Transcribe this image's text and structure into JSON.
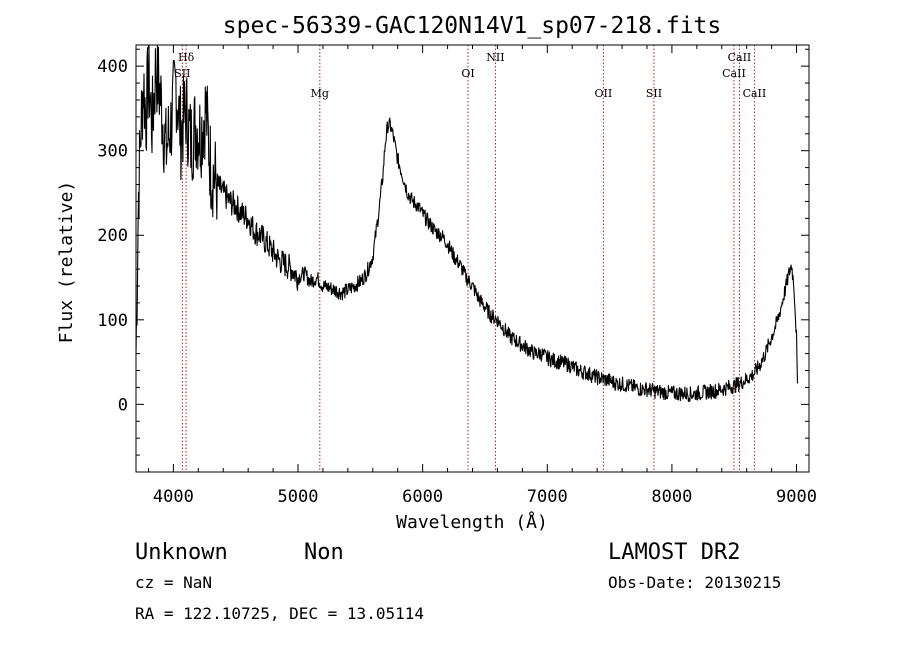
{
  "chart_data": {
    "type": "line",
    "title": "spec-56339-GAC120N14V1_sp07-218.fits",
    "xlabel": "Wavelength (Å)",
    "ylabel": "Flux (relative)",
    "xlim": [
      3700,
      9100
    ],
    "ylim": [
      -80,
      425
    ],
    "x_ticks": [
      4000,
      5000,
      6000,
      7000,
      8000,
      9000
    ],
    "y_ticks": [
      0,
      100,
      200,
      300,
      400
    ],
    "grid": false,
    "line_color": "#000000",
    "marker_color": "#b22222",
    "series": [
      {
        "x": [
          3700,
          3720,
          3740,
          3760,
          3780,
          3800,
          3830,
          3860,
          3900,
          3940,
          3980,
          4020,
          4060,
          4100,
          4140,
          4180,
          4220,
          4260,
          4300,
          4350,
          4400,
          4450,
          4500,
          4550,
          4600,
          4650,
          4700,
          4750,
          4800,
          4850,
          4900,
          4950,
          5000,
          5050,
          5100,
          5150,
          5200,
          5250,
          5300,
          5350,
          5400,
          5450,
          5500,
          5550,
          5600,
          5650,
          5680,
          5700,
          5720,
          5740,
          5760,
          5780,
          5800,
          5820,
          5850,
          5880,
          5920,
          5960,
          6000,
          6050,
          6100,
          6150,
          6200,
          6250,
          6300,
          6350,
          6400,
          6450,
          6500,
          6550,
          6600,
          6650,
          6700,
          6750,
          6800,
          6850,
          6900,
          6950,
          7000,
          7050,
          7100,
          7150,
          7200,
          7250,
          7300,
          7350,
          7400,
          7450,
          7500,
          7550,
          7600,
          7650,
          7700,
          7750,
          7800,
          7850,
          7900,
          7950,
          8000,
          8050,
          8100,
          8150,
          8200,
          8250,
          8300,
          8350,
          8400,
          8450,
          8500,
          8550,
          8600,
          8650,
          8700,
          8750,
          8800,
          8850,
          8900,
          8940,
          8960,
          8980,
          9000,
          9010
        ],
        "y": [
          60,
          250,
          330,
          380,
          340,
          390,
          330,
          400,
          360,
          300,
          330,
          380,
          320,
          350,
          310,
          330,
          320,
          350,
          280,
          260,
          250,
          240,
          235,
          225,
          220,
          205,
          200,
          190,
          180,
          170,
          165,
          160,
          150,
          155,
          145,
          150,
          140,
          138,
          135,
          132,
          135,
          140,
          145,
          155,
          175,
          230,
          270,
          310,
          330,
          330,
          320,
          305,
          290,
          280,
          265,
          250,
          240,
          235,
          225,
          215,
          205,
          200,
          190,
          175,
          165,
          150,
          140,
          125,
          115,
          105,
          100,
          90,
          80,
          75,
          70,
          65,
          60,
          60,
          55,
          52,
          50,
          48,
          45,
          40,
          38,
          35,
          32,
          30,
          28,
          25,
          24,
          22,
          20,
          18,
          18,
          16,
          15,
          14,
          13,
          13,
          13,
          12,
          13,
          14,
          15,
          16,
          18,
          20,
          22,
          25,
          30,
          35,
          45,
          60,
          80,
          100,
          130,
          155,
          165,
          140,
          80,
          0
        ]
      }
    ],
    "lines": [
      {
        "name": "Hδ",
        "wavelength": 4102
      },
      {
        "name": "SII",
        "wavelength": 4072
      },
      {
        "name": "Mg",
        "wavelength": 5175
      },
      {
        "name": "OI",
        "wavelength": 6364
      },
      {
        "name": "NII",
        "wavelength": 6584
      },
      {
        "name": "OII",
        "wavelength": 7450
      },
      {
        "name": "SII",
        "wavelength": 7856
      },
      {
        "name": "CaII",
        "wavelength": 8542
      },
      {
        "name": "CaII",
        "wavelength": 8498
      },
      {
        "name": "CaII",
        "wavelength": 8662
      }
    ]
  },
  "info": {
    "class": "Unknown",
    "subclass": "Non",
    "survey": "LAMOST DR2",
    "cz": "cz = NaN",
    "obs_date": "Obs-Date: 20130215",
    "coords": "RA = 122.10725, DEC =  13.05114"
  }
}
